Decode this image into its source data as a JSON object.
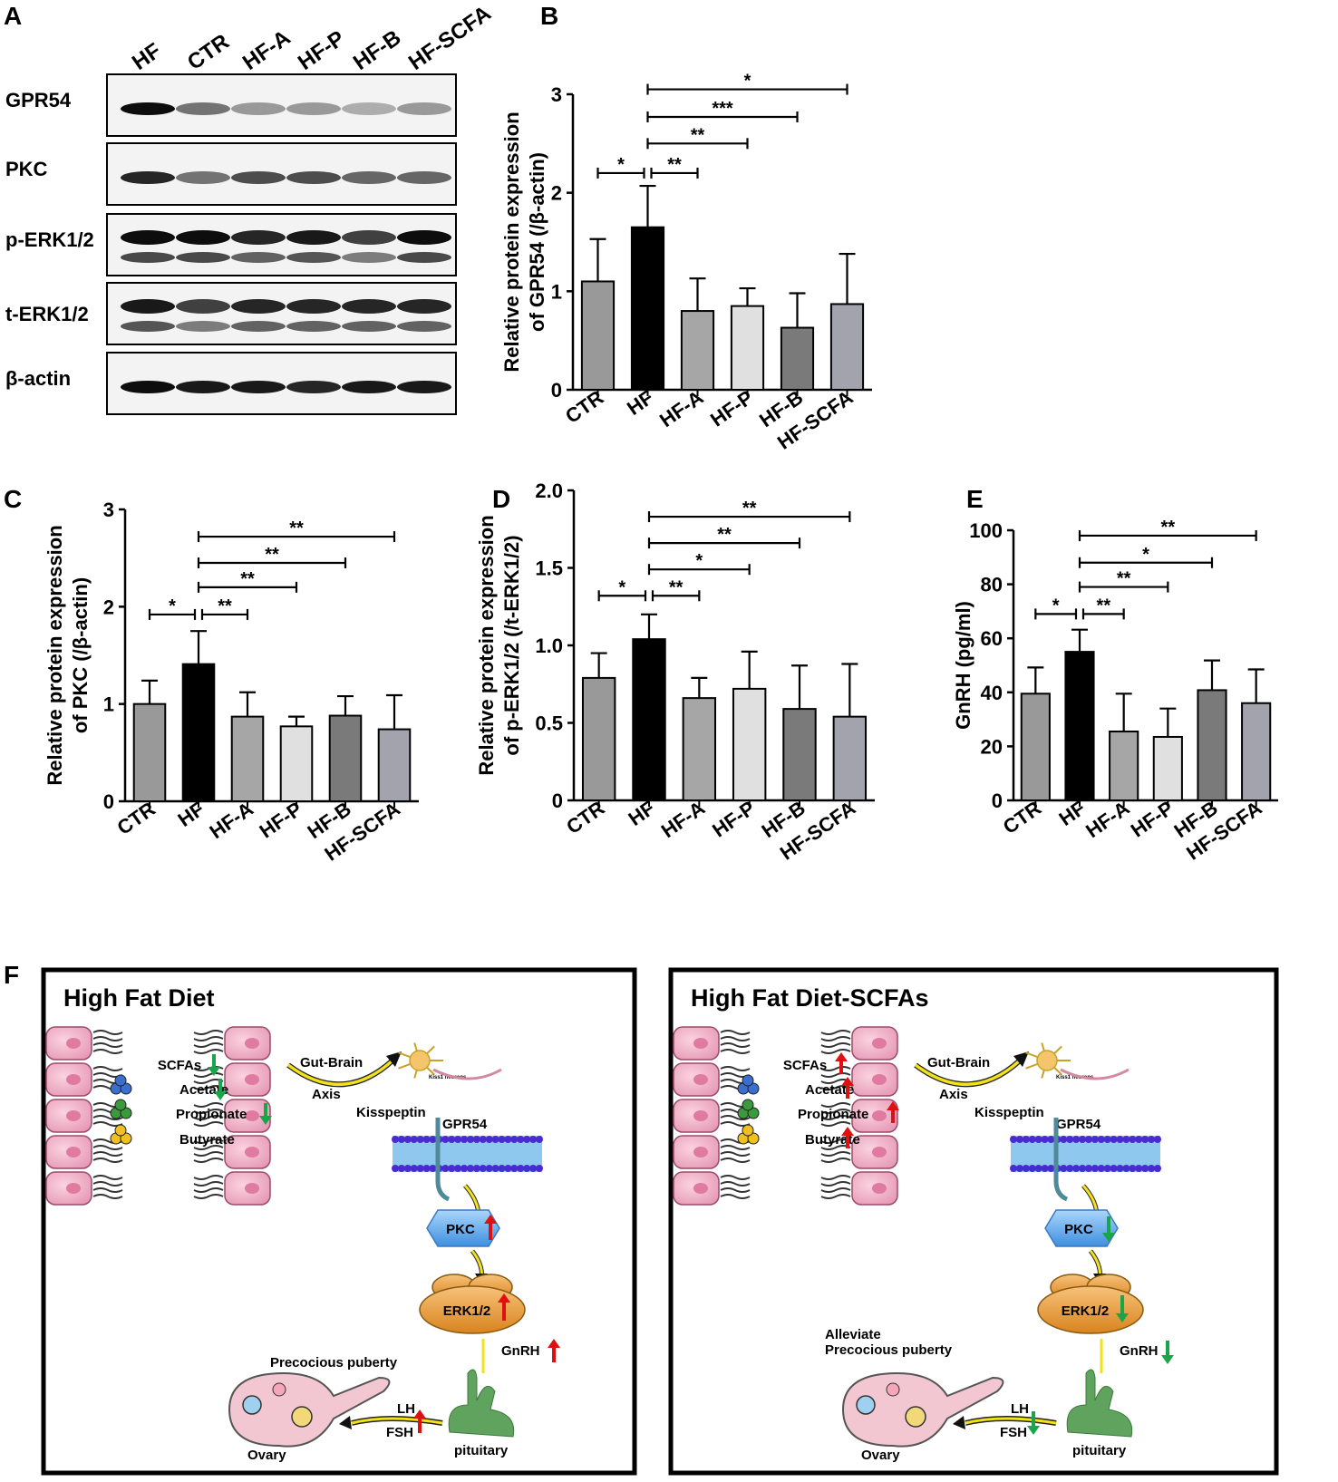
{
  "panels": {
    "a": "A",
    "b": "B",
    "c": "C",
    "d": "D",
    "e": "E",
    "f": "F"
  },
  "blot": {
    "lanes": [
      "HF",
      "CTR",
      "HF-A",
      "HF-P",
      "HF-B",
      "HF-SCFA"
    ],
    "rows": [
      {
        "label": "GPR54",
        "intensity": [
          0.95,
          0.55,
          0.4,
          0.4,
          0.32,
          0.4
        ],
        "bands": 1
      },
      {
        "label": "PKC",
        "intensity": [
          0.85,
          0.55,
          0.7,
          0.7,
          0.6,
          0.6
        ],
        "bands": 1
      },
      {
        "label": "p-ERK1/2",
        "intensity": [
          0.95,
          0.95,
          0.85,
          0.9,
          0.75,
          0.95
        ],
        "bands": 2
      },
      {
        "label": "t-ERK1/2",
        "intensity": [
          0.9,
          0.75,
          0.85,
          0.85,
          0.85,
          0.85
        ],
        "bands": 2
      },
      {
        "label": "β-actin",
        "intensity": [
          0.95,
          0.9,
          0.9,
          0.85,
          0.9,
          0.9
        ],
        "bands": 1
      }
    ]
  },
  "chart_data": [
    {
      "id": "B",
      "type": "bar",
      "categories": [
        "CTR",
        "HF",
        "HF-A",
        "HF-P",
        "HF-B",
        "HF-SCFA"
      ],
      "values": [
        1.1,
        1.65,
        0.8,
        0.85,
        0.63,
        0.87
      ],
      "errors": [
        0.43,
        0.42,
        0.33,
        0.18,
        0.35,
        0.51
      ],
      "ylabel_line1": "Relative protein expression",
      "ylabel_line2": "of GPR54 (/β-actin)",
      "ylim": [
        0,
        3
      ],
      "yticks": [
        "0",
        "1",
        "2",
        "3"
      ],
      "colors": [
        "#999999",
        "#000000",
        "#a6a6a6",
        "#e0e0e0",
        "#7a7a7a",
        "#a3a3ad"
      ],
      "sig": [
        {
          "from": 0,
          "to": 1,
          "label": "*"
        },
        {
          "from": 1,
          "to": 2,
          "label": "**"
        },
        {
          "from": 1,
          "to": 3,
          "label": "**"
        },
        {
          "from": 1,
          "to": 4,
          "label": "***"
        },
        {
          "from": 1,
          "to": 5,
          "label": "*"
        }
      ],
      "sig_levels": [
        2.2,
        2.2,
        2.5,
        2.77,
        3.05
      ]
    },
    {
      "id": "C",
      "type": "bar",
      "categories": [
        "CTR",
        "HF",
        "HF-A",
        "HF-P",
        "HF-B",
        "HF-SCFA"
      ],
      "values": [
        1.0,
        1.41,
        0.87,
        0.77,
        0.88,
        0.74
      ],
      "errors": [
        0.24,
        0.34,
        0.25,
        0.1,
        0.2,
        0.35
      ],
      "ylabel_line1": "Relative protein expression",
      "ylabel_line2": "of PKC (/β-actin)",
      "ylim": [
        0,
        3
      ],
      "yticks": [
        "0",
        "1",
        "2",
        "3"
      ],
      "colors": [
        "#999999",
        "#000000",
        "#a6a6a6",
        "#e0e0e0",
        "#7a7a7a",
        "#a3a3ad"
      ],
      "sig": [
        {
          "from": 0,
          "to": 1,
          "label": "*"
        },
        {
          "from": 1,
          "to": 2,
          "label": "**"
        },
        {
          "from": 1,
          "to": 3,
          "label": "**"
        },
        {
          "from": 1,
          "to": 4,
          "label": "**"
        },
        {
          "from": 1,
          "to": 5,
          "label": "**"
        }
      ],
      "sig_levels": [
        1.92,
        1.92,
        2.2,
        2.45,
        2.72
      ]
    },
    {
      "id": "D",
      "type": "bar",
      "categories": [
        "CTR",
        "HF",
        "HF-A",
        "HF-P",
        "HF-B",
        "HF-SCFA"
      ],
      "values": [
        0.79,
        1.04,
        0.66,
        0.72,
        0.59,
        0.54
      ],
      "errors": [
        0.16,
        0.16,
        0.13,
        0.24,
        0.28,
        0.34
      ],
      "ylabel_line1": "Relative protein expression",
      "ylabel_line2": "of p-ERK1/2 (/t-ERK1/2)",
      "ylim": [
        0,
        2
      ],
      "yticks": [
        "0",
        "0.5",
        "1.0",
        "1.5",
        "2.0"
      ],
      "colors": [
        "#999999",
        "#000000",
        "#a6a6a6",
        "#e0e0e0",
        "#7a7a7a",
        "#a3a3ad"
      ],
      "sig": [
        {
          "from": 0,
          "to": 1,
          "label": "*"
        },
        {
          "from": 1,
          "to": 2,
          "label": "**"
        },
        {
          "from": 1,
          "to": 3,
          "label": "*"
        },
        {
          "from": 1,
          "to": 4,
          "label": "**"
        },
        {
          "from": 1,
          "to": 5,
          "label": "**"
        }
      ],
      "sig_levels": [
        1.32,
        1.32,
        1.49,
        1.66,
        1.83
      ]
    },
    {
      "id": "E",
      "type": "bar",
      "categories": [
        "CTR",
        "HF",
        "HF-A",
        "HF-P",
        "HF-B",
        "HF-SCFA"
      ],
      "values": [
        39.5,
        55,
        25.5,
        23.5,
        40.8,
        36
      ],
      "errors": [
        9.7,
        8.2,
        14,
        10.5,
        11,
        12.5
      ],
      "ylabel_line1": "GnRH (pg/ml)",
      "ylabel_line2": "",
      "ylim": [
        0,
        100
      ],
      "yticks": [
        "0",
        "20",
        "40",
        "60",
        "80",
        "100"
      ],
      "colors": [
        "#999999",
        "#000000",
        "#a6a6a6",
        "#e0e0e0",
        "#7a7a7a",
        "#a3a3ad"
      ],
      "sig": [
        {
          "from": 0,
          "to": 1,
          "label": "*"
        },
        {
          "from": 1,
          "to": 2,
          "label": "**"
        },
        {
          "from": 1,
          "to": 3,
          "label": "**"
        },
        {
          "from": 1,
          "to": 4,
          "label": "*"
        },
        {
          "from": 1,
          "to": 5,
          "label": "**"
        }
      ],
      "sig_levels": [
        69,
        69,
        79,
        88,
        98
      ]
    }
  ],
  "scheme": {
    "left": {
      "title": "High Fat Diet",
      "scfa_labels": [
        "SCFAs",
        "Acetate",
        "Propionate",
        "Butyrate"
      ],
      "scfa_arrows": [
        "down",
        "down",
        "down",
        "none"
      ],
      "gut_brain_1": "Gut-Brain",
      "gut_brain_2": "Axis",
      "kisspeptin": "Kisspeptin",
      "gpr54": "GPR54",
      "kiss_neuron": "Kiss1 neurons",
      "pkc": "PKC",
      "pkc_arrow": "up",
      "erk": "ERK1/2",
      "erk_arrow": "up",
      "gnrh": "GnRH",
      "gnrh_arrow": "up",
      "outcome_1": "Precocious puberty",
      "outcome_2": "",
      "ovary": "Ovary",
      "pituitary": "pituitary",
      "lh": "LH",
      "fsh": "FSH",
      "lhfsh_arrow": "up"
    },
    "right": {
      "title": "High Fat Diet-SCFAs",
      "scfa_labels": [
        "SCFAs",
        "Acetate",
        "Propionate",
        "Butyrate"
      ],
      "scfa_arrows": [
        "up",
        "up",
        "up",
        "up"
      ],
      "gut_brain_1": "Gut-Brain",
      "gut_brain_2": "Axis",
      "kisspeptin": "Kisspeptin",
      "gpr54": "GPR54",
      "kiss_neuron": "Kiss1 neurons",
      "pkc": "PKC",
      "pkc_arrow": "down",
      "erk": "ERK1/2",
      "erk_arrow": "down",
      "gnrh": "GnRH",
      "gnrh_arrow": "down",
      "outcome_1": "Alleviate",
      "outcome_2": "Precocious puberty",
      "ovary": "Ovary",
      "pituitary": "pituitary",
      "lh": "LH",
      "fsh": "FSH",
      "lhfsh_arrow": "down"
    },
    "colors": {
      "up": "#e01010",
      "down": "#19a64a",
      "pathway": "#f2e21a",
      "membrane": "#8fc8ee",
      "lipid_head": "#4a2bd0",
      "pkc": "#6fb6f0",
      "erk": "#f0a040",
      "pituitary": "#5fa35f",
      "gut": "#f2b6c9"
    }
  }
}
